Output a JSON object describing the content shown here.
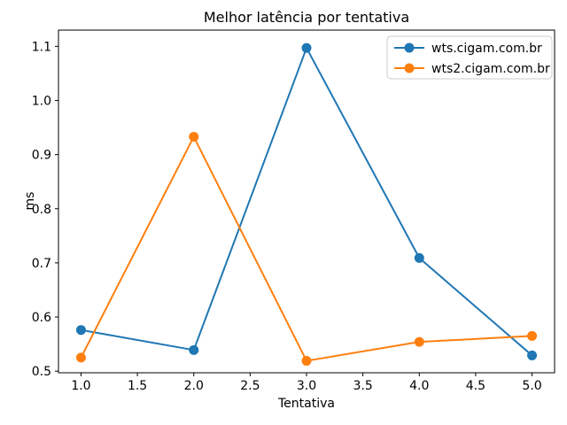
{
  "figure": {
    "background": "#ffffff",
    "axis_color": "#000000",
    "text_color": "#000000"
  },
  "chart_data": {
    "type": "line",
    "title": "Melhor latência por tentativa",
    "xlabel": "Tentativa",
    "ylabel": "ms",
    "x": [
      1,
      2,
      3,
      4,
      5
    ],
    "series": [
      {
        "name": "wts.cigam.com.br",
        "color": "#1f77b4",
        "values": [
          0.576,
          0.539,
          1.097,
          0.709,
          0.529
        ]
      },
      {
        "name": "wts2.cigam.com.br",
        "color": "#ff7f0e",
        "values": [
          0.525,
          0.933,
          0.519,
          0.554,
          0.565
        ]
      }
    ],
    "xticks": [
      1.0,
      1.5,
      2.0,
      2.5,
      3.0,
      3.5,
      4.0,
      4.5,
      5.0
    ],
    "xtick_labels": [
      "1.0",
      "1.5",
      "2.0",
      "2.5",
      "3.0",
      "3.5",
      "4.0",
      "4.5",
      "5.0"
    ],
    "yticks": [
      0.5,
      0.6,
      0.7,
      0.8,
      0.9,
      1.0,
      1.1
    ],
    "ytick_labels": [
      "0.5",
      "0.6",
      "0.7",
      "0.8",
      "0.9",
      "1.0",
      "1.1"
    ],
    "xlim": [
      0.8,
      5.2
    ],
    "ylim": [
      0.497,
      1.13
    ],
    "grid": false,
    "legend_position": "upper-right",
    "marker": "circle",
    "legend_border_color": "#cccccc",
    "legend_background": "#ffffff"
  }
}
